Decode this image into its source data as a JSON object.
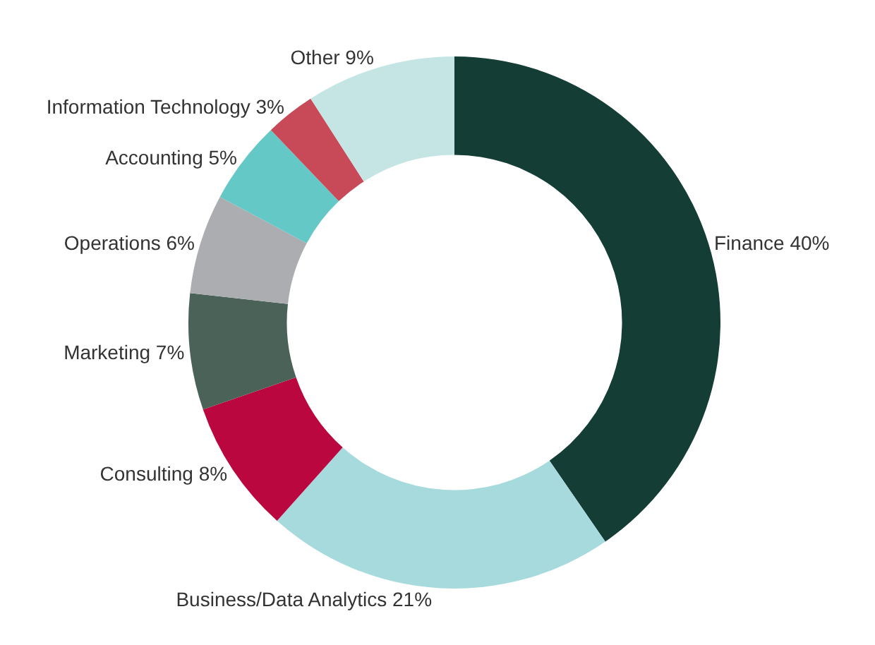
{
  "chart_data": {
    "type": "donut",
    "categories": [
      "Finance",
      "Business/Data Analytics",
      "Consulting",
      "Marketing",
      "Operations",
      "Accounting",
      "Information Technology",
      "Other"
    ],
    "values": [
      40,
      21,
      8,
      7,
      6,
      5,
      3,
      9
    ],
    "value_labels": [
      "40%",
      "21%",
      "8%",
      "7%",
      "6%",
      "5%",
      "3%",
      "9%"
    ],
    "colors": [
      "#133d35",
      "#a6dadc",
      "#bb073f",
      "#4a6257",
      "#acadb0",
      "#64c8c6",
      "#c84a58",
      "#c5e5e5"
    ],
    "legend": false
  }
}
